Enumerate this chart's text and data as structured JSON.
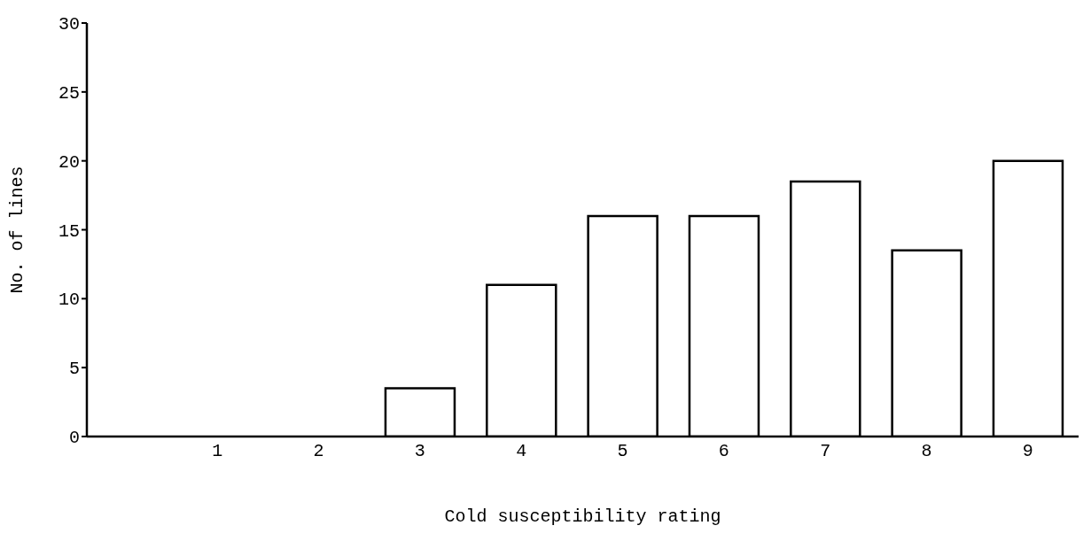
{
  "chart_data": {
    "type": "bar",
    "xlabel": "Cold susceptibility rating",
    "ylabel": "No. of lines",
    "categories": [
      "1",
      "2",
      "3",
      "4",
      "5",
      "6",
      "7",
      "8",
      "9"
    ],
    "values": [
      0,
      0,
      3.5,
      11,
      16,
      16,
      18.5,
      13.5,
      20
    ],
    "color": "#ffffff",
    "ylim": [
      0,
      30
    ],
    "yticks": [
      0,
      5,
      10,
      15,
      20,
      25,
      30
    ],
    "grid": false,
    "legend": false
  }
}
